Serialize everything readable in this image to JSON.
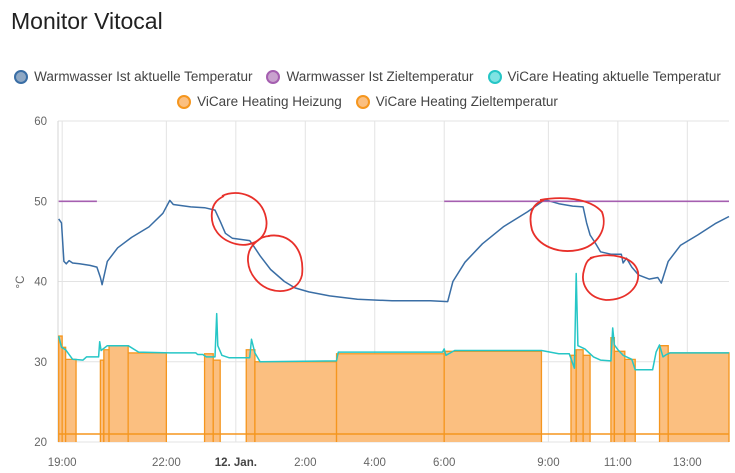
{
  "title": "Monitor Vitocal",
  "chart_data": {
    "type": "line",
    "y_unit": "°C",
    "ylim": [
      20,
      60
    ],
    "y_ticks": [
      "20",
      "30",
      "40",
      "50",
      "60"
    ],
    "x_range_hours": [
      18.88,
      38.2
    ],
    "x_ticks": [
      {
        "h": 19,
        "label": "19:00",
        "bold": false
      },
      {
        "h": 22,
        "label": "22:00",
        "bold": false
      },
      {
        "h": 24,
        "label": "12. Jan.",
        "bold": true
      },
      {
        "h": 26,
        "label": "2:00",
        "bold": false
      },
      {
        "h": 28,
        "label": "4:00",
        "bold": false
      },
      {
        "h": 30,
        "label": "6:00",
        "bold": false
      },
      {
        "h": 33,
        "label": "9:00",
        "bold": false
      },
      {
        "h": 35,
        "label": "11:00",
        "bold": false
      },
      {
        "h": 37,
        "label": "13:00",
        "bold": false
      }
    ],
    "grid": true,
    "legend_position": "top",
    "series": [
      {
        "name": "Warmwasser Ist aktuelle Temperatur",
        "color": "#3a6ea5",
        "legend_fill": "#8fa8c4",
        "points": [
          [
            18.9,
            47.8
          ],
          [
            18.98,
            47.3
          ],
          [
            19.05,
            42.5
          ],
          [
            19.12,
            42.2
          ],
          [
            19.2,
            42.6
          ],
          [
            19.3,
            42.3
          ],
          [
            19.5,
            42.2
          ],
          [
            19.8,
            42.0
          ],
          [
            20.0,
            41.8
          ],
          [
            20.1,
            40.5
          ],
          [
            20.15,
            39.6
          ],
          [
            20.3,
            42.5
          ],
          [
            20.6,
            44.2
          ],
          [
            21.0,
            45.5
          ],
          [
            21.5,
            46.8
          ],
          [
            21.9,
            48.5
          ],
          [
            22.1,
            50.1
          ],
          [
            22.2,
            49.6
          ],
          [
            22.7,
            49.3
          ],
          [
            23.1,
            49.2
          ],
          [
            23.4,
            48.9
          ],
          [
            23.55,
            47.5
          ],
          [
            23.7,
            46.0
          ],
          [
            23.9,
            45.4
          ],
          [
            24.4,
            45.1
          ],
          [
            24.5,
            44.5
          ],
          [
            24.7,
            43.2
          ],
          [
            25.0,
            41.5
          ],
          [
            25.4,
            40.0
          ],
          [
            25.7,
            39.2
          ],
          [
            26.1,
            38.7
          ],
          [
            26.7,
            38.2
          ],
          [
            27.5,
            37.8
          ],
          [
            28.5,
            37.6
          ],
          [
            29.6,
            37.6
          ],
          [
            30.1,
            37.5
          ],
          [
            30.25,
            40.0
          ],
          [
            30.6,
            42.4
          ],
          [
            31.1,
            44.7
          ],
          [
            31.7,
            46.8
          ],
          [
            32.4,
            48.7
          ],
          [
            32.9,
            50.2
          ],
          [
            33.3,
            49.7
          ],
          [
            33.7,
            49.4
          ],
          [
            34.0,
            49.3
          ],
          [
            34.1,
            47.3
          ],
          [
            34.2,
            45.8
          ],
          [
            34.35,
            44.8
          ],
          [
            34.5,
            43.7
          ],
          [
            34.8,
            43.4
          ],
          [
            35.1,
            43.4
          ],
          [
            35.15,
            42.3
          ],
          [
            35.25,
            42.9
          ],
          [
            35.4,
            41.8
          ],
          [
            35.6,
            40.8
          ],
          [
            35.9,
            40.3
          ],
          [
            36.15,
            40.5
          ],
          [
            36.25,
            39.8
          ],
          [
            36.45,
            42.5
          ],
          [
            36.8,
            44.5
          ],
          [
            37.3,
            45.8
          ],
          [
            37.8,
            47.2
          ],
          [
            38.2,
            48.1
          ]
        ]
      },
      {
        "name": "Warmwasser Ist Zieltemperatur",
        "color": "#a55fb0",
        "legend_fill": "#c9a2ce",
        "segments": [
          [
            [
              18.9,
              50
            ],
            [
              20.0,
              50
            ]
          ],
          [
            [
              30.0,
              50
            ],
            [
              38.2,
              50
            ]
          ]
        ]
      },
      {
        "name": "ViCare Heating aktuelle Temperatur",
        "color": "#26c6c6",
        "legend_fill": "#7fe3e3",
        "points": [
          [
            18.9,
            33.2
          ],
          [
            18.98,
            31.8
          ],
          [
            19.1,
            31.5
          ],
          [
            19.3,
            30.3
          ],
          [
            19.6,
            30.2
          ],
          [
            19.7,
            30.6
          ],
          [
            20.05,
            30.6
          ],
          [
            20.08,
            32.5
          ],
          [
            20.12,
            31.4
          ],
          [
            20.3,
            32.0
          ],
          [
            20.9,
            32.0
          ],
          [
            21.2,
            31.2
          ],
          [
            22.1,
            31.1
          ],
          [
            22.85,
            31.1
          ],
          [
            22.9,
            30.9
          ],
          [
            23.05,
            30.9
          ],
          [
            23.15,
            30.6
          ],
          [
            23.4,
            30.6
          ],
          [
            23.45,
            36.0
          ],
          [
            23.48,
            32.0
          ],
          [
            23.6,
            30.8
          ],
          [
            23.8,
            30.5
          ],
          [
            24.4,
            30.5
          ],
          [
            24.45,
            32.8
          ],
          [
            24.55,
            31.1
          ],
          [
            24.7,
            30.0
          ],
          [
            26.9,
            30.1
          ],
          [
            26.95,
            31.2
          ],
          [
            29.95,
            31.2
          ],
          [
            30.0,
            31.6
          ],
          [
            30.05,
            30.8
          ],
          [
            30.3,
            31.4
          ],
          [
            32.8,
            31.4
          ],
          [
            33.3,
            31.0
          ],
          [
            33.6,
            31.0
          ],
          [
            33.65,
            30.4
          ],
          [
            33.75,
            29.2
          ],
          [
            33.8,
            41.0
          ],
          [
            33.85,
            32.0
          ],
          [
            34.05,
            31.6
          ],
          [
            34.3,
            30.6
          ],
          [
            34.5,
            30.2
          ],
          [
            34.8,
            30.1
          ],
          [
            34.85,
            34.2
          ],
          [
            34.9,
            32.1
          ],
          [
            35.0,
            31.5
          ],
          [
            35.15,
            30.8
          ],
          [
            35.4,
            30.3
          ],
          [
            35.5,
            29.0
          ],
          [
            36.0,
            29.0
          ],
          [
            36.1,
            31.2
          ],
          [
            36.2,
            32.1
          ],
          [
            36.3,
            30.6
          ],
          [
            36.4,
            30.9
          ],
          [
            36.5,
            31.1
          ],
          [
            38.2,
            31.1
          ]
        ]
      },
      {
        "name": "ViCare Heating Heizung",
        "color": "#f5961e",
        "legend_fill": "#fbbf80",
        "blocks": [
          [
            18.9,
            19.0,
            33.2
          ],
          [
            19.0,
            19.1,
            31.8
          ],
          [
            19.1,
            19.4,
            30.3
          ],
          [
            20.1,
            20.2,
            30.2
          ],
          [
            20.2,
            20.35,
            31.5
          ],
          [
            20.35,
            20.9,
            32.0
          ],
          [
            20.9,
            22.0,
            31.1
          ],
          [
            23.1,
            23.35,
            31.0
          ],
          [
            23.35,
            23.55,
            30.2
          ],
          [
            24.3,
            24.55,
            31.5
          ],
          [
            24.55,
            26.9,
            30.0
          ],
          [
            26.9,
            30.0,
            31.0
          ],
          [
            30.0,
            32.8,
            31.3
          ],
          [
            33.65,
            33.8,
            30.8
          ],
          [
            33.8,
            34.0,
            31.5
          ],
          [
            34.0,
            34.2,
            30.8
          ],
          [
            34.8,
            34.9,
            33.0
          ],
          [
            34.9,
            35.2,
            31.3
          ],
          [
            35.2,
            35.5,
            30.3
          ],
          [
            36.2,
            36.45,
            32.0
          ],
          [
            36.45,
            38.2,
            31.1
          ]
        ],
        "baseline": 21.0
      },
      {
        "name": "ViCare Heating Zieltemperatur",
        "color": "#f5961e",
        "legend_fill": "#fbbf80",
        "segments": [
          [
            [
              18.9,
              21.0
            ],
            [
              38.2,
              21.0
            ]
          ]
        ]
      }
    ]
  }
}
